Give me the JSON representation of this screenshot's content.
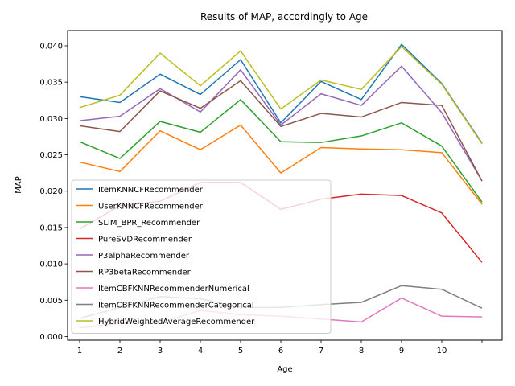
{
  "chart_data": {
    "type": "line",
    "title": "Results of MAP, accordingly to Age",
    "xlabel": "Age",
    "ylabel": "MAP",
    "x": [
      1,
      2,
      3,
      4,
      5,
      6,
      7,
      8,
      9,
      10,
      11
    ],
    "xtick_labels": [
      "1",
      "2",
      "3",
      "4",
      "5",
      "6",
      "7",
      "8",
      "9",
      "10",
      ""
    ],
    "xlim": [
      0.7,
      11.5
    ],
    "ylim": [
      -0.0005,
      0.0421
    ],
    "yticks": [
      0.0,
      0.005,
      0.01,
      0.015,
      0.02,
      0.025,
      0.03,
      0.035,
      0.04
    ],
    "ytick_labels": [
      "0.000",
      "0.005",
      "0.010",
      "0.015",
      "0.020",
      "0.025",
      "0.030",
      "0.035",
      "0.040"
    ],
    "grid": false,
    "legend_position": "lower-left",
    "series": [
      {
        "name": "ItemKNNCFRecommender",
        "color": "#1f77b4",
        "values": [
          0.033,
          0.0322,
          0.0361,
          0.0333,
          0.0381,
          0.0294,
          0.0351,
          0.0326,
          0.0402,
          0.0348,
          0.0266
        ]
      },
      {
        "name": "UserKNNCFRecommender",
        "color": "#ff7f0e",
        "values": [
          0.024,
          0.0227,
          0.0283,
          0.0257,
          0.0291,
          0.0225,
          0.026,
          0.0258,
          0.0257,
          0.0253,
          0.0182
        ]
      },
      {
        "name": "SLIM_BPR_Recommender",
        "color": "#2ca02c",
        "values": [
          0.0268,
          0.0245,
          0.0296,
          0.0281,
          0.0326,
          0.0268,
          0.0267,
          0.0276,
          0.0294,
          0.0262,
          0.0185
        ]
      },
      {
        "name": "PureSVDRecommender",
        "color": "#d62728",
        "values": [
          0.0148,
          0.018,
          0.0186,
          0.0212,
          0.0212,
          0.0175,
          0.0189,
          0.0196,
          0.0194,
          0.017,
          0.0102
        ]
      },
      {
        "name": "P3alphaRecommender",
        "color": "#9467bd",
        "values": [
          0.0297,
          0.0303,
          0.0341,
          0.0309,
          0.0367,
          0.0291,
          0.0334,
          0.0318,
          0.0372,
          0.0308,
          0.0214
        ]
      },
      {
        "name": "RP3betaRecommender",
        "color": "#8c564b",
        "values": [
          0.029,
          0.0282,
          0.0338,
          0.0314,
          0.0352,
          0.0289,
          0.0307,
          0.0302,
          0.0322,
          0.0318,
          0.0214
        ]
      },
      {
        "name": "ItemCBFKNNRecommenderNumerical",
        "color": "#e377c2",
        "values": [
          0.0012,
          0.0018,
          0.0019,
          0.0036,
          0.003,
          0.0028,
          0.0024,
          0.002,
          0.0053,
          0.0028,
          0.0027
        ]
      },
      {
        "name": "ItemCBFKNNRecommenderCategorical",
        "color": "#7f7f7f",
        "values": [
          0.0025,
          0.004,
          0.0055,
          0.0052,
          0.004,
          0.004,
          0.0044,
          0.0047,
          0.007,
          0.0065,
          0.0039
        ]
      },
      {
        "name": "HybridWeightedAverageRecommender",
        "color": "#bcbd22",
        "values": [
          0.0315,
          0.0332,
          0.039,
          0.0345,
          0.0393,
          0.0313,
          0.0353,
          0.034,
          0.0399,
          0.0347,
          0.0265
        ]
      }
    ]
  }
}
